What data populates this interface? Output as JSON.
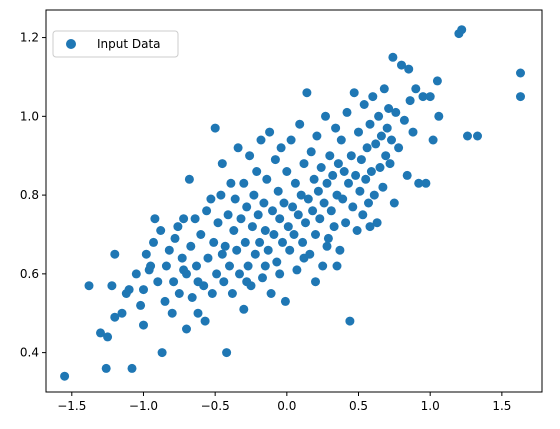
{
  "colors": {
    "series": "#1f77b4",
    "axis": "#000000",
    "legend_border": "#cccccc",
    "background": "#ffffff"
  },
  "chart_data": {
    "type": "scatter",
    "title": "",
    "xlabel": "",
    "ylabel": "",
    "xlim": [
      -1.68,
      1.78
    ],
    "ylim": [
      0.3,
      1.27
    ],
    "xticks": [
      -1.5,
      -1.0,
      -0.5,
      0.0,
      0.5,
      1.0,
      1.5
    ],
    "xtick_labels": [
      "−1.5",
      "−1.0",
      "−0.5",
      "0.0",
      "0.5",
      "1.0",
      "1.5"
    ],
    "yticks": [
      0.4,
      0.6,
      0.8,
      1.0,
      1.2
    ],
    "ytick_labels": [
      "0.4",
      "0.6",
      "0.8",
      "1.0",
      "1.2"
    ],
    "grid": false,
    "legend": {
      "position": "top-left",
      "entries": [
        "Input Data"
      ]
    },
    "series": [
      {
        "name": "Input Data",
        "points": [
          [
            -1.55,
            0.34
          ],
          [
            -1.38,
            0.57
          ],
          [
            -1.3,
            0.45
          ],
          [
            -1.25,
            0.44
          ],
          [
            -1.26,
            0.36
          ],
          [
            -1.22,
            0.57
          ],
          [
            -1.2,
            0.49
          ],
          [
            -1.2,
            0.65
          ],
          [
            -1.15,
            0.5
          ],
          [
            -1.12,
            0.55
          ],
          [
            -1.1,
            0.56
          ],
          [
            -1.08,
            0.36
          ],
          [
            -1.05,
            0.6
          ],
          [
            -1.02,
            0.52
          ],
          [
            -1.0,
            0.47
          ],
          [
            -1.0,
            0.56
          ],
          [
            -0.98,
            0.65
          ],
          [
            -0.96,
            0.61
          ],
          [
            -0.93,
            0.68
          ],
          [
            -0.92,
            0.74
          ],
          [
            -0.9,
            0.58
          ],
          [
            -0.88,
            0.71
          ],
          [
            -0.87,
            0.4
          ],
          [
            -0.85,
            0.53
          ],
          [
            -0.84,
            0.62
          ],
          [
            -0.82,
            0.66
          ],
          [
            -0.8,
            0.5
          ],
          [
            -0.79,
            0.58
          ],
          [
            -0.78,
            0.69
          ],
          [
            -0.76,
            0.72
          ],
          [
            -0.75,
            0.55
          ],
          [
            -0.73,
            0.64
          ],
          [
            -0.72,
            0.74
          ],
          [
            -0.7,
            0.46
          ],
          [
            -0.7,
            0.6
          ],
          [
            -0.68,
            0.84
          ],
          [
            -0.67,
            0.67
          ],
          [
            -0.66,
            0.54
          ],
          [
            -0.64,
            0.74
          ],
          [
            -0.63,
            0.62
          ],
          [
            -0.62,
            0.5
          ],
          [
            -0.6,
            0.7
          ],
          [
            -0.58,
            0.57
          ],
          [
            -0.57,
            0.48
          ],
          [
            -0.56,
            0.76
          ],
          [
            -0.55,
            0.64
          ],
          [
            -0.53,
            0.79
          ],
          [
            -0.52,
            0.55
          ],
          [
            -0.51,
            0.68
          ],
          [
            -0.5,
            0.97
          ],
          [
            -0.49,
            0.6
          ],
          [
            -0.48,
            0.73
          ],
          [
            -0.46,
            0.8
          ],
          [
            -0.45,
            0.88
          ],
          [
            -0.44,
            0.58
          ],
          [
            -0.43,
            0.67
          ],
          [
            -0.42,
            0.4
          ],
          [
            -0.41,
            0.75
          ],
          [
            -0.4,
            0.62
          ],
          [
            -0.39,
            0.83
          ],
          [
            -0.38,
            0.55
          ],
          [
            -0.37,
            0.71
          ],
          [
            -0.36,
            0.79
          ],
          [
            -0.35,
            0.66
          ],
          [
            -0.34,
            0.92
          ],
          [
            -0.33,
            0.6
          ],
          [
            -0.32,
            0.74
          ],
          [
            -0.3,
            0.51
          ],
          [
            -0.3,
            0.83
          ],
          [
            -0.29,
            0.68
          ],
          [
            -0.28,
            0.77
          ],
          [
            -0.27,
            0.62
          ],
          [
            -0.26,
            0.9
          ],
          [
            -0.25,
            0.57
          ],
          [
            -0.24,
            0.72
          ],
          [
            -0.23,
            0.8
          ],
          [
            -0.22,
            0.65
          ],
          [
            -0.21,
            0.86
          ],
          [
            -0.2,
            0.75
          ],
          [
            -0.19,
            0.68
          ],
          [
            -0.18,
            0.94
          ],
          [
            -0.17,
            0.59
          ],
          [
            -0.16,
            0.78
          ],
          [
            -0.15,
            0.71
          ],
          [
            -0.14,
            0.84
          ],
          [
            -0.13,
            0.66
          ],
          [
            -0.12,
            0.96
          ],
          [
            -0.11,
            0.55
          ],
          [
            -0.1,
            0.76
          ],
          [
            -0.09,
            0.7
          ],
          [
            -0.08,
            0.89
          ],
          [
            -0.07,
            0.63
          ],
          [
            -0.06,
            0.81
          ],
          [
            -0.05,
            0.74
          ],
          [
            -0.04,
            0.92
          ],
          [
            -0.03,
            0.68
          ],
          [
            -0.02,
            0.78
          ],
          [
            -0.01,
            0.53
          ],
          [
            0.0,
            0.86
          ],
          [
            0.01,
            0.72
          ],
          [
            0.02,
            0.66
          ],
          [
            0.03,
            0.94
          ],
          [
            0.04,
            0.77
          ],
          [
            0.05,
            0.7
          ],
          [
            0.06,
            0.83
          ],
          [
            0.07,
            0.61
          ],
          [
            0.08,
            0.75
          ],
          [
            0.09,
            0.98
          ],
          [
            0.1,
            0.8
          ],
          [
            0.11,
            0.68
          ],
          [
            0.12,
            0.88
          ],
          [
            0.13,
            0.73
          ],
          [
            0.14,
            1.06
          ],
          [
            0.15,
            0.79
          ],
          [
            0.16,
            0.65
          ],
          [
            0.17,
            0.91
          ],
          [
            0.18,
            0.76
          ],
          [
            0.19,
            0.84
          ],
          [
            0.2,
            0.7
          ],
          [
            0.21,
            0.95
          ],
          [
            0.22,
            0.81
          ],
          [
            0.23,
            0.74
          ],
          [
            0.24,
            0.87
          ],
          [
            0.25,
            0.62
          ],
          [
            0.26,
            0.78
          ],
          [
            0.27,
            1.0
          ],
          [
            0.28,
            0.83
          ],
          [
            0.29,
            0.69
          ],
          [
            0.3,
            0.9
          ],
          [
            0.31,
            0.76
          ],
          [
            0.32,
            0.85
          ],
          [
            0.33,
            0.72
          ],
          [
            0.34,
            0.97
          ],
          [
            0.35,
            0.8
          ],
          [
            0.36,
            0.88
          ],
          [
            0.37,
            0.66
          ],
          [
            0.38,
            0.94
          ],
          [
            0.39,
            0.79
          ],
          [
            0.4,
            0.86
          ],
          [
            0.41,
            0.73
          ],
          [
            0.42,
            1.01
          ],
          [
            0.43,
            0.83
          ],
          [
            0.44,
            0.48
          ],
          [
            0.45,
            0.9
          ],
          [
            0.46,
            0.77
          ],
          [
            0.47,
            1.06
          ],
          [
            0.48,
            0.85
          ],
          [
            0.49,
            0.71
          ],
          [
            0.5,
            0.96
          ],
          [
            0.51,
            0.81
          ],
          [
            0.52,
            0.89
          ],
          [
            0.53,
            0.75
          ],
          [
            0.54,
            1.03
          ],
          [
            0.55,
            0.84
          ],
          [
            0.56,
            0.92
          ],
          [
            0.57,
            0.78
          ],
          [
            0.58,
            0.98
          ],
          [
            0.59,
            0.86
          ],
          [
            0.6,
            1.05
          ],
          [
            0.61,
            0.8
          ],
          [
            0.62,
            0.93
          ],
          [
            0.63,
            0.73
          ],
          [
            0.64,
            1.0
          ],
          [
            0.65,
            0.87
          ],
          [
            0.66,
            0.95
          ],
          [
            0.67,
            0.82
          ],
          [
            0.68,
            1.07
          ],
          [
            0.69,
            0.9
          ],
          [
            0.7,
            0.97
          ],
          [
            0.71,
            1.02
          ],
          [
            0.72,
            0.88
          ],
          [
            0.73,
            0.94
          ],
          [
            0.74,
            1.15
          ],
          [
            0.75,
            0.78
          ],
          [
            0.76,
            1.01
          ],
          [
            0.78,
            0.92
          ],
          [
            0.8,
            1.13
          ],
          [
            0.82,
            0.99
          ],
          [
            0.84,
            0.85
          ],
          [
            0.85,
            1.12
          ],
          [
            0.86,
            1.04
          ],
          [
            0.88,
            0.96
          ],
          [
            0.9,
            1.07
          ],
          [
            0.92,
            0.83
          ],
          [
            0.95,
            1.05
          ],
          [
            0.97,
            0.83
          ],
          [
            1.0,
            1.05
          ],
          [
            1.02,
            0.94
          ],
          [
            1.05,
            1.09
          ],
          [
            1.06,
            1.0
          ],
          [
            1.2,
            1.21
          ],
          [
            1.22,
            1.22
          ],
          [
            1.26,
            0.95
          ],
          [
            1.33,
            0.95
          ],
          [
            1.63,
            1.11
          ],
          [
            1.63,
            1.05
          ],
          [
            -0.95,
            0.62
          ],
          [
            -0.62,
            0.58
          ],
          [
            -0.15,
            0.62
          ],
          [
            0.2,
            0.58
          ],
          [
            0.35,
            0.62
          ],
          [
            -0.45,
            0.65
          ],
          [
            -0.05,
            0.6
          ],
          [
            0.58,
            0.72
          ],
          [
            0.28,
            0.67
          ],
          [
            -0.28,
            0.58
          ],
          [
            0.12,
            0.64
          ],
          [
            -0.72,
            0.61
          ]
        ]
      }
    ]
  }
}
